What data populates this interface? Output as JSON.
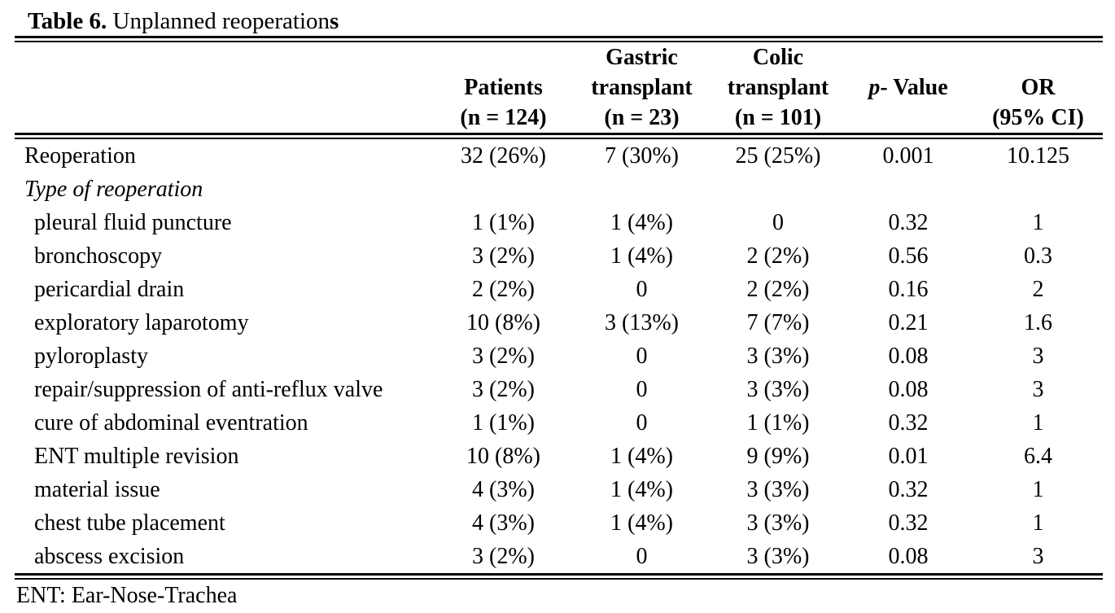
{
  "title": {
    "prefix": "Table 6.",
    "main": " Unplanned reoperation",
    "suffix": "s"
  },
  "table": {
    "columns": [
      {
        "name": "row-label",
        "lines": []
      },
      {
        "name": "patients",
        "lines": [
          "Patients",
          "(n = 124)"
        ]
      },
      {
        "name": "gastric-transplant",
        "lines": [
          "Gastric",
          "transplant",
          "(n = 23)"
        ]
      },
      {
        "name": "colic-transplant",
        "lines": [
          "Colic",
          "transplant",
          "(n = 101)"
        ]
      },
      {
        "name": "p-value",
        "italic": "p",
        "rest": "- Value"
      },
      {
        "name": "or-ci",
        "lines": [
          "OR",
          "(95% CI)"
        ]
      }
    ],
    "rows": [
      {
        "label": "Reoperation",
        "style": "main",
        "cells": [
          "32 (26%)",
          "7 (30%)",
          "25 (25%)",
          "0.001",
          "10.125"
        ]
      },
      {
        "label": "Type of reoperation",
        "style": "section",
        "cells": [
          "",
          "",
          "",
          "",
          ""
        ]
      },
      {
        "label": "pleural fluid puncture",
        "style": "item",
        "cells": [
          "1 (1%)",
          "1 (4%)",
          "0",
          "0.32",
          "1"
        ]
      },
      {
        "label": "bronchoscopy",
        "style": "item",
        "cells": [
          "3 (2%)",
          "1 (4%)",
          "2 (2%)",
          "0.56",
          "0.3"
        ]
      },
      {
        "label": "pericardial drain",
        "style": "item",
        "cells": [
          "2 (2%)",
          "0",
          "2 (2%)",
          "0.16",
          "2"
        ]
      },
      {
        "label": "exploratory laparotomy",
        "style": "item",
        "cells": [
          "10 (8%)",
          "3 (13%)",
          "7 (7%)",
          "0.21",
          "1.6"
        ]
      },
      {
        "label": "pyloroplasty",
        "style": "item",
        "cells": [
          "3 (2%)",
          "0",
          "3 (3%)",
          "0.08",
          "3"
        ]
      },
      {
        "label": "repair/suppression of anti-reflux valve",
        "style": "item",
        "cells": [
          "3 (2%)",
          "0",
          "3 (3%)",
          "0.08",
          "3"
        ]
      },
      {
        "label": "cure of abdominal eventration",
        "style": "item",
        "cells": [
          "1 (1%)",
          "0",
          "1 (1%)",
          "0.32",
          "1"
        ]
      },
      {
        "label": "ENT multiple revision",
        "style": "item",
        "cells": [
          "10 (8%)",
          "1 (4%)",
          "9 (9%)",
          "0.01",
          "6.4"
        ]
      },
      {
        "label": "material issue",
        "style": "item",
        "cells": [
          "4 (3%)",
          "1 (4%)",
          "3 (3%)",
          "0.32",
          "1"
        ]
      },
      {
        "label": "chest tube placement",
        "style": "item",
        "cells": [
          "4 (3%)",
          "1 (4%)",
          "3 (3%)",
          "0.32",
          "1"
        ]
      },
      {
        "label": "abscess excision",
        "style": "item",
        "cells": [
          "3 (2%)",
          "0",
          "3 (3%)",
          "0.08",
          "3"
        ]
      }
    ]
  },
  "footnote": "ENT: Ear-Nose-Trachea"
}
